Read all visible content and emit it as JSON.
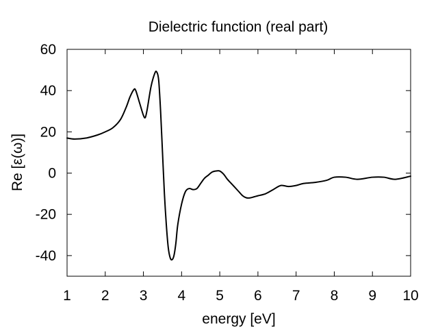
{
  "chart_data": {
    "type": "line",
    "title": "Dielectric function (real part)",
    "xlabel": "energy [eV]",
    "ylabel": "Re [ε(ω)]",
    "xlim": [
      1,
      10
    ],
    "ylim": [
      -50,
      60
    ],
    "xticks": [
      1,
      2,
      3,
      4,
      5,
      6,
      7,
      8,
      9,
      10
    ],
    "yticks": [
      -40,
      -20,
      0,
      20,
      40,
      60
    ],
    "grid": false,
    "legend": "none",
    "line_color": "#000000",
    "series": [
      {
        "x": [
          1.0,
          1.2,
          1.5,
          1.8,
          2.0,
          2.2,
          2.4,
          2.55,
          2.65,
          2.75,
          2.8,
          2.9,
          3.0,
          3.05,
          3.1,
          3.2,
          3.3,
          3.35,
          3.4,
          3.45,
          3.5,
          3.55,
          3.6,
          3.65,
          3.7,
          3.75,
          3.8,
          3.85,
          3.9,
          4.0,
          4.1,
          4.2,
          4.3,
          4.4,
          4.5,
          4.6,
          4.7,
          4.8,
          4.9,
          5.0,
          5.1,
          5.2,
          5.3,
          5.4,
          5.5,
          5.6,
          5.7,
          5.8,
          5.9,
          6.0,
          6.2,
          6.4,
          6.6,
          6.8,
          7.0,
          7.2,
          7.5,
          7.8,
          8.0,
          8.3,
          8.6,
          9.0,
          9.3,
          9.6,
          10.0
        ],
        "y": [
          17,
          16.5,
          17,
          18.5,
          20,
          22,
          26,
          32,
          37,
          40.5,
          40,
          34,
          28,
          27,
          31,
          42,
          48.5,
          49,
          45,
          30,
          10,
          -10,
          -25,
          -36,
          -41,
          -42,
          -40,
          -34,
          -25,
          -15,
          -9,
          -7.5,
          -8,
          -7.5,
          -5,
          -2.5,
          -1,
          0.5,
          1,
          1,
          -0.5,
          -3,
          -5,
          -7,
          -9,
          -11,
          -12,
          -12,
          -11.5,
          -11,
          -10,
          -8,
          -6,
          -6.5,
          -6,
          -5,
          -4.5,
          -3.5,
          -2,
          -2,
          -3,
          -2,
          -2,
          -3,
          -1.5
        ]
      }
    ]
  }
}
